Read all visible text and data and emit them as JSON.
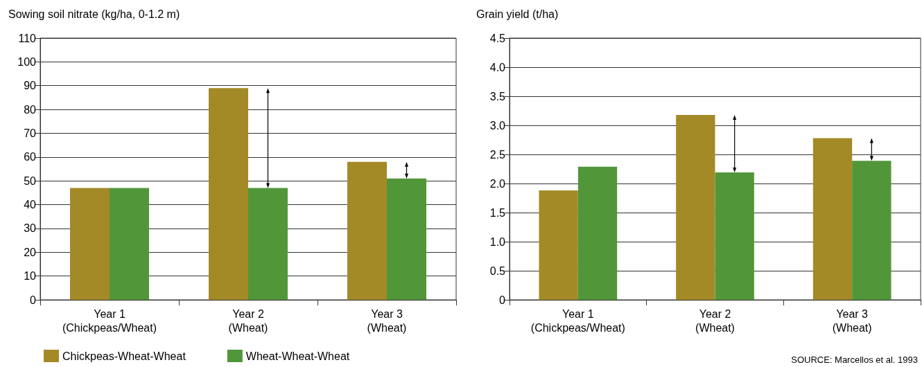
{
  "chart_data": [
    {
      "type": "bar",
      "ylabel": "Sowing soil nitrate (kg/ha, 0-1.2 m)",
      "categories": [
        "Year 1\n(Chickpeas/Wheat)",
        "Year 2\n(Wheat)",
        "Year 3\n(Wheat)"
      ],
      "series": [
        {
          "name": "Chickpeas-Wheat-Wheat",
          "color": "#a38a27",
          "values": [
            47,
            89,
            58
          ]
        },
        {
          "name": "Wheat-Wheat-Wheat",
          "color": "#52963a",
          "values": [
            47,
            47,
            51
          ]
        }
      ],
      "ylim": [
        0,
        110
      ],
      "yticks": [
        0,
        10,
        20,
        30,
        40,
        50,
        60,
        70,
        80,
        90,
        100,
        110
      ],
      "grid": "y",
      "legend": "bottom"
    },
    {
      "type": "bar",
      "ylabel": "Grain yield (t/ha)",
      "categories": [
        "Year 1\n(Chickpeas/Wheat)",
        "Year 2\n(Wheat)",
        "Year 3\n(Wheat)"
      ],
      "series": [
        {
          "color": "#a38a27",
          "values": [
            1.88,
            3.18,
            2.78
          ]
        },
        {
          "color": "#52963a",
          "values": [
            2.29,
            2.19,
            2.39
          ]
        }
      ],
      "ylim": [
        0,
        4.5
      ],
      "yticks": [
        0,
        0.5,
        {
          "value": 1,
          "label": "1.0"
        },
        1.5,
        {
          "value": 2,
          "label": "2.0"
        },
        2.5,
        {
          "value": 3,
          "label": "3.0"
        },
        3.5,
        {
          "value": 4,
          "label": "4.0"
        },
        4.5
      ],
      "grid": "y",
      "annotations": [
        "SOURCE: Marcellos et al. 1993"
      ]
    }
  ]
}
